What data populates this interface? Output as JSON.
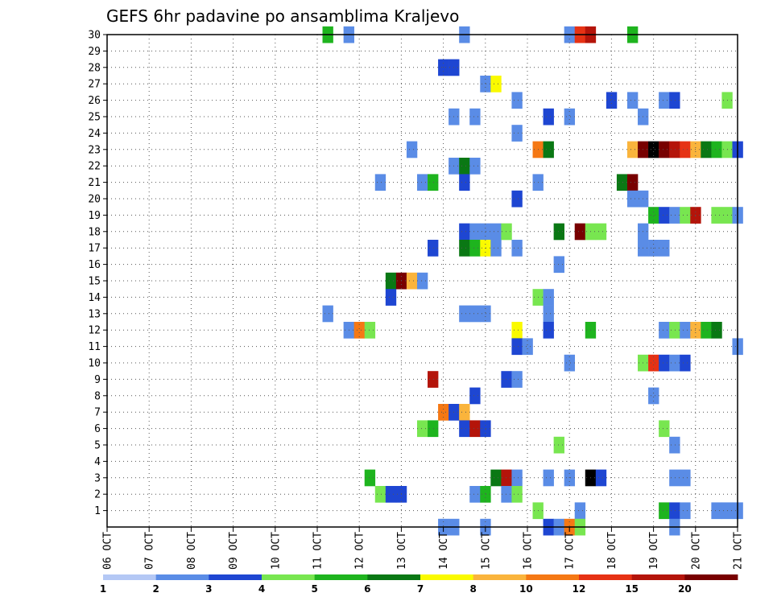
{
  "chart_data": {
    "type": "heatmap",
    "title": "GEFS 6hr padavine po ansamblima Kraljevo",
    "x_ticks": [
      "06 OCT",
      "07 OCT",
      "08 OCT",
      "09 OCT",
      "10 OCT",
      "11 OCT",
      "12 OCT",
      "13 OCT",
      "14 OCT",
      "15 OCT",
      "16 OCT",
      "17 OCT",
      "18 OCT",
      "19 OCT",
      "20 OCT",
      "21 OCT"
    ],
    "y_ticks": [
      "1",
      "2",
      "3",
      "4",
      "5",
      "6",
      "7",
      "8",
      "9",
      "10",
      "11",
      "12",
      "13",
      "14",
      "15",
      "16",
      "17",
      "18",
      "19",
      "20",
      "21",
      "22",
      "23",
      "24",
      "25",
      "26",
      "27",
      "28",
      "29",
      "30"
    ],
    "x_range_days": [
      6,
      21
    ],
    "y_range": [
      0,
      30
    ],
    "grid": true,
    "legend": {
      "placement": "bottom",
      "labels": [
        "1",
        "2",
        "3",
        "4",
        "5",
        "6",
        "7",
        "8",
        "10",
        "12",
        "15",
        "20"
      ],
      "colors": [
        "#b4c8f5",
        "#5a8ce6",
        "#1e46d2",
        "#78e650",
        "#1eb41e",
        "#0a7814",
        "#fafa00",
        "#fab43c",
        "#f57814",
        "#e63214",
        "#b4140a",
        "#780000"
      ]
    },
    "cells": [
      [
        11.25,
        30,
        4
      ],
      [
        11.75,
        30,
        1
      ],
      [
        14.5,
        30,
        1
      ],
      [
        17.0,
        30,
        1
      ],
      [
        17.25,
        30,
        9
      ],
      [
        17.5,
        30,
        10
      ],
      [
        18.5,
        30,
        4
      ],
      [
        14.0,
        28,
        2
      ],
      [
        14.25,
        28,
        2
      ],
      [
        15.0,
        27,
        1
      ],
      [
        15.25,
        27,
        6
      ],
      [
        15.75,
        26,
        1
      ],
      [
        18.0,
        26,
        2
      ],
      [
        18.5,
        26,
        1
      ],
      [
        19.25,
        26,
        1
      ],
      [
        19.5,
        26,
        2
      ],
      [
        20.75,
        26,
        3
      ],
      [
        14.25,
        25,
        1
      ],
      [
        14.75,
        25,
        1
      ],
      [
        16.5,
        25,
        2
      ],
      [
        17.0,
        25,
        1
      ],
      [
        18.75,
        25,
        1
      ],
      [
        15.75,
        24,
        1
      ],
      [
        13.25,
        23,
        1
      ],
      [
        16.25,
        23,
        8
      ],
      [
        16.5,
        23,
        5
      ],
      [
        18.5,
        23,
        7
      ],
      [
        18.75,
        23,
        11
      ],
      [
        19.0,
        23,
        12
      ],
      [
        19.25,
        23,
        11
      ],
      [
        19.5,
        23,
        10
      ],
      [
        19.75,
        23,
        9
      ],
      [
        20.0,
        23,
        7
      ],
      [
        20.25,
        23,
        5
      ],
      [
        20.5,
        23,
        4
      ],
      [
        20.75,
        23,
        3
      ],
      [
        21.0,
        23,
        2
      ],
      [
        14.25,
        22,
        1
      ],
      [
        14.5,
        22,
        5
      ],
      [
        14.75,
        22,
        1
      ],
      [
        12.5,
        21,
        1
      ],
      [
        13.5,
        21,
        1
      ],
      [
        13.75,
        21,
        4
      ],
      [
        14.5,
        21,
        2
      ],
      [
        16.25,
        21,
        1
      ],
      [
        18.25,
        21,
        5
      ],
      [
        18.5,
        21,
        11
      ],
      [
        15.75,
        20,
        2
      ],
      [
        18.5,
        20,
        1
      ],
      [
        18.75,
        20,
        1
      ],
      [
        19.0,
        19,
        4
      ],
      [
        19.25,
        19,
        2
      ],
      [
        19.5,
        19,
        1
      ],
      [
        19.75,
        19,
        3
      ],
      [
        20.0,
        19,
        10
      ],
      [
        20.5,
        19,
        3
      ],
      [
        20.75,
        19,
        3
      ],
      [
        21.0,
        19,
        1
      ],
      [
        14.5,
        18,
        2
      ],
      [
        14.75,
        18,
        1
      ],
      [
        15.0,
        18,
        1
      ],
      [
        15.25,
        18,
        1
      ],
      [
        15.5,
        18,
        3
      ],
      [
        16.75,
        18,
        5
      ],
      [
        17.25,
        18,
        11
      ],
      [
        17.5,
        18,
        3
      ],
      [
        17.75,
        18,
        3
      ],
      [
        18.75,
        18,
        1
      ],
      [
        13.75,
        17,
        2
      ],
      [
        14.5,
        17,
        5
      ],
      [
        14.75,
        17,
        4
      ],
      [
        15.0,
        17,
        6
      ],
      [
        15.25,
        17,
        1
      ],
      [
        15.75,
        17,
        1
      ],
      [
        18.75,
        17,
        1
      ],
      [
        19.0,
        17,
        1
      ],
      [
        19.25,
        17,
        1
      ],
      [
        16.75,
        16,
        1
      ],
      [
        12.75,
        15,
        5
      ],
      [
        13.0,
        15,
        11
      ],
      [
        13.25,
        15,
        7
      ],
      [
        13.5,
        15,
        1
      ],
      [
        12.75,
        14,
        2
      ],
      [
        16.25,
        14,
        3
      ],
      [
        16.5,
        14,
        1
      ],
      [
        11.25,
        13,
        1
      ],
      [
        14.5,
        13,
        1
      ],
      [
        14.75,
        13,
        1
      ],
      [
        15.0,
        13,
        1
      ],
      [
        16.5,
        13,
        1
      ],
      [
        11.75,
        12,
        1
      ],
      [
        12.0,
        12,
        8
      ],
      [
        12.25,
        12,
        3
      ],
      [
        15.75,
        12,
        6
      ],
      [
        16.5,
        12,
        2
      ],
      [
        17.5,
        12,
        4
      ],
      [
        19.25,
        12,
        1
      ],
      [
        19.5,
        12,
        3
      ],
      [
        19.75,
        12,
        1
      ],
      [
        20.0,
        12,
        7
      ],
      [
        20.25,
        12,
        4
      ],
      [
        20.5,
        12,
        5
      ],
      [
        15.75,
        11,
        2
      ],
      [
        16.0,
        11,
        1
      ],
      [
        21.0,
        11,
        1
      ],
      [
        17.0,
        10,
        1
      ],
      [
        18.75,
        10,
        3
      ],
      [
        19.0,
        10,
        9
      ],
      [
        19.25,
        10,
        2
      ],
      [
        19.5,
        10,
        1
      ],
      [
        19.75,
        10,
        2
      ],
      [
        13.75,
        9,
        10
      ],
      [
        15.5,
        9,
        2
      ],
      [
        15.75,
        9,
        1
      ],
      [
        14.75,
        8,
        2
      ],
      [
        19.0,
        8,
        1
      ],
      [
        14.0,
        7,
        8
      ],
      [
        14.25,
        7,
        2
      ],
      [
        14.5,
        7,
        7
      ],
      [
        13.5,
        6,
        3
      ],
      [
        13.75,
        6,
        4
      ],
      [
        14.5,
        6,
        2
      ],
      [
        14.75,
        6,
        10
      ],
      [
        15.0,
        6,
        2
      ],
      [
        19.25,
        6,
        3
      ],
      [
        16.75,
        5,
        3
      ],
      [
        19.5,
        5,
        1
      ],
      [
        12.25,
        3,
        4
      ],
      [
        15.25,
        3,
        5
      ],
      [
        15.5,
        3,
        10
      ],
      [
        15.75,
        3,
        1
      ],
      [
        16.5,
        3,
        1
      ],
      [
        17.0,
        3,
        1
      ],
      [
        17.5,
        3,
        12
      ],
      [
        17.75,
        3,
        2
      ],
      [
        19.5,
        3,
        1
      ],
      [
        19.75,
        3,
        1
      ],
      [
        12.5,
        2,
        3
      ],
      [
        12.75,
        2,
        2
      ],
      [
        13.0,
        2,
        2
      ],
      [
        14.75,
        2,
        1
      ],
      [
        15.0,
        2,
        4
      ],
      [
        15.5,
        2,
        1
      ],
      [
        15.75,
        2,
        3
      ],
      [
        16.25,
        1,
        3
      ],
      [
        17.25,
        1,
        1
      ],
      [
        19.25,
        1,
        4
      ],
      [
        19.5,
        1,
        2
      ],
      [
        19.75,
        1,
        1
      ],
      [
        20.5,
        1,
        1
      ],
      [
        20.75,
        1,
        1
      ],
      [
        21.0,
        1,
        1
      ],
      [
        14.0,
        0,
        1
      ],
      [
        14.25,
        0,
        1
      ],
      [
        15.0,
        0,
        1
      ],
      [
        16.5,
        0,
        2
      ],
      [
        16.75,
        0,
        1
      ],
      [
        17.0,
        0,
        8
      ],
      [
        17.25,
        0,
        3
      ],
      [
        19.5,
        0,
        1
      ]
    ]
  }
}
